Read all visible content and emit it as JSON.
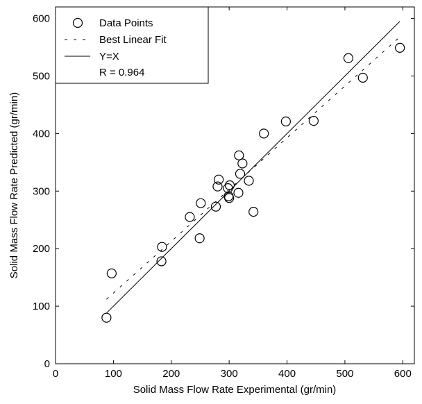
{
  "chart_data": {
    "type": "scatter",
    "xlabel": "Solid Mass Flow Rate Experimental (gr/min)",
    "ylabel": "Solid Mass Flow Rate Predicted (gr/min)",
    "xlim": [
      0,
      620
    ],
    "ylim": [
      0,
      620
    ],
    "xticks": [
      0,
      100,
      200,
      300,
      400,
      500,
      600
    ],
    "yticks": [
      0,
      100,
      200,
      300,
      400,
      500,
      600
    ],
    "xtick_labels": [
      "0",
      "100",
      "200",
      "300",
      "400",
      "500",
      "600"
    ],
    "ytick_labels": [
      "0",
      "100",
      "200",
      "300",
      "400",
      "500",
      "600"
    ],
    "grid": false,
    "legend_position": "top-left",
    "legend": {
      "data_points": "Data Points",
      "best_fit": "Best Linear Fit",
      "identity": "Y=X",
      "r_value": "R = 0.964"
    },
    "series": [
      {
        "name": "Data Points",
        "marker": "open-circle",
        "points": [
          [
            88,
            80
          ],
          [
            97,
            157
          ],
          [
            183,
            178
          ],
          [
            184,
            203
          ],
          [
            232,
            255
          ],
          [
            249,
            218
          ],
          [
            251,
            279
          ],
          [
            277,
            273
          ],
          [
            280,
            308
          ],
          [
            282,
            320
          ],
          [
            298,
            305
          ],
          [
            299,
            291
          ],
          [
            300,
            288
          ],
          [
            301,
            310
          ],
          [
            316,
            297
          ],
          [
            317,
            362
          ],
          [
            319,
            330
          ],
          [
            323,
            348
          ],
          [
            334,
            318
          ],
          [
            342,
            264
          ],
          [
            360,
            400
          ],
          [
            398,
            421
          ],
          [
            446,
            422
          ],
          [
            506,
            531
          ],
          [
            531,
            497
          ],
          [
            595,
            549
          ]
        ]
      },
      {
        "name": "Best Linear Fit",
        "style": "dashed",
        "line": [
          [
            88,
            112
          ],
          [
            595,
            568
          ]
        ]
      },
      {
        "name": "Y=X",
        "style": "solid",
        "line": [
          [
            88,
            88
          ],
          [
            595,
            595
          ]
        ]
      }
    ]
  }
}
